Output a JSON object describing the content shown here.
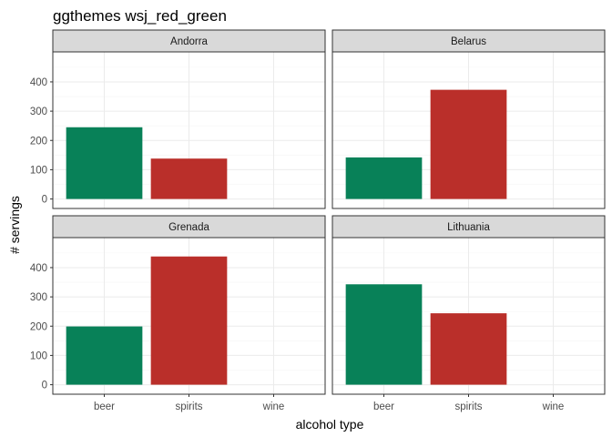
{
  "chart_data": {
    "type": "bar",
    "title": "ggthemes wsj_red_green",
    "xlabel": "alcohol type",
    "ylabel": "# servings",
    "categories": [
      "beer",
      "spirits",
      "wine"
    ],
    "ylim": [
      0,
      490
    ],
    "yticks": [
      0,
      100,
      200,
      300,
      400
    ],
    "grid": true,
    "colors": {
      "beer": "#088158",
      "spirits": "#BA2F2A",
      "wine": "#BA2F2A"
    },
    "facets": [
      {
        "name": "Andorra",
        "values": [
          245,
          138,
          0
        ]
      },
      {
        "name": "Belarus",
        "values": [
          142,
          373,
          0
        ]
      },
      {
        "name": "Grenada",
        "values": [
          199,
          438,
          0
        ]
      },
      {
        "name": "Lithuania",
        "values": [
          343,
          244,
          0
        ]
      }
    ]
  }
}
